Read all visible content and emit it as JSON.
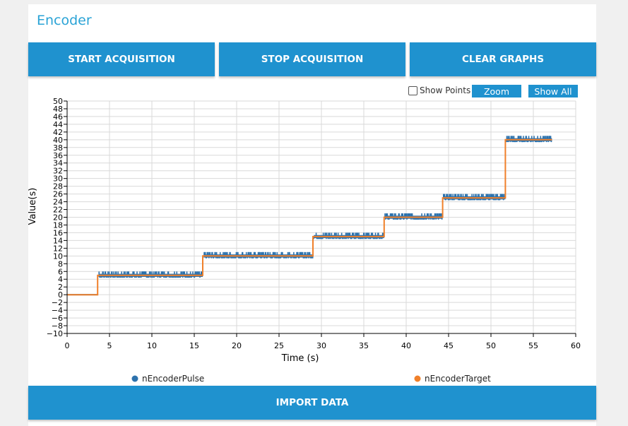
{
  "panel": {
    "title": "Encoder"
  },
  "buttons": {
    "start": "START ACQUISITION",
    "stop": "STOP ACQUISITION",
    "clear": "CLEAR GRAPHS",
    "import": "IMPORT DATA"
  },
  "toolbar": {
    "show_points_label": "Show Points",
    "show_points_checked": false,
    "zoom_label": "Zoom",
    "show_all_label": "Show All"
  },
  "colors": {
    "accent": "#1f92cf",
    "title": "#2aa3d6",
    "pulse": "#2d72ad",
    "target": "#f0802a"
  },
  "chart_data": {
    "type": "line",
    "xlabel": "Time (s)",
    "ylabel": "Value(s)",
    "xlim": [
      0,
      60
    ],
    "ylim": [
      -10,
      50
    ],
    "x_ticks": [
      0,
      5,
      10,
      15,
      20,
      25,
      30,
      35,
      40,
      45,
      50,
      55,
      60
    ],
    "y_ticks": [
      -10,
      -8,
      -6,
      -4,
      -2,
      0,
      2,
      4,
      6,
      8,
      10,
      12,
      14,
      16,
      18,
      20,
      22,
      24,
      26,
      28,
      30,
      32,
      34,
      36,
      38,
      40,
      42,
      44,
      46,
      48,
      50
    ],
    "grid": true,
    "legend": "bottom",
    "series": [
      {
        "name": "nEncoderPulse",
        "color": "#2d72ad",
        "segments": [
          {
            "x_start": 0,
            "x_end": 3.6,
            "y": 0,
            "noise": 0
          },
          {
            "x_start": 3.7,
            "x_end": 16.0,
            "y": 5,
            "noise": 1
          },
          {
            "x_start": 16.1,
            "x_end": 29.0,
            "y": 10,
            "noise": 1
          },
          {
            "x_start": 29.1,
            "x_end": 37.4,
            "y": 15,
            "noise": 1
          },
          {
            "x_start": 37.5,
            "x_end": 44.3,
            "y": 20,
            "noise": 1
          },
          {
            "x_start": 44.4,
            "x_end": 51.7,
            "y": 25,
            "noise": 1
          },
          {
            "x_start": 51.8,
            "x_end": 57.2,
            "y": 40,
            "noise": 1
          }
        ]
      },
      {
        "name": "nEncoderTarget",
        "color": "#f0802a",
        "x": [
          0,
          3.6,
          3.6,
          16.0,
          16.0,
          29.0,
          29.0,
          37.4,
          37.4,
          44.3,
          44.3,
          51.7,
          51.7,
          57.2
        ],
        "y": [
          0,
          0,
          5,
          5,
          10,
          10,
          15,
          15,
          20,
          20,
          25,
          25,
          40,
          40
        ]
      }
    ]
  }
}
